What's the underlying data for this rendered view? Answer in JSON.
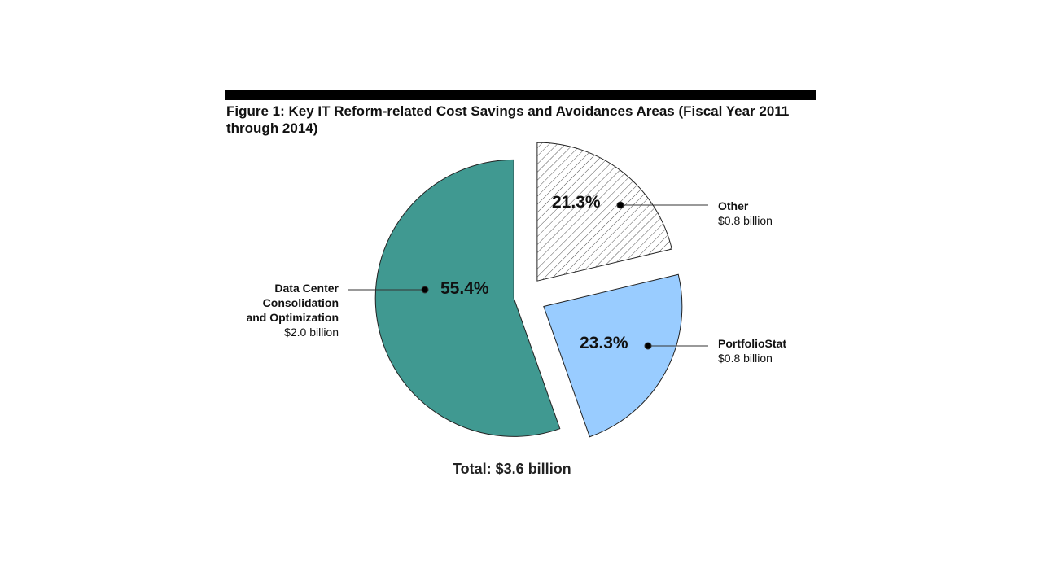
{
  "title": "Figure 1: Key IT Reform-related Cost Savings and Avoidances Areas (Fiscal Year 2011 through 2014)",
  "total_label": "Total:  $3.6 billion",
  "chart_data": {
    "type": "pie",
    "title": "Figure 1: Key IT Reform-related Cost Savings and Avoidances Areas (Fiscal Year 2011 through 2014)",
    "total": "Total:  $3.6 billion",
    "slices": [
      {
        "name": "Other",
        "value": 21.3,
        "pct_label": "21.3%",
        "amount": "$0.8 billion",
        "color": "#ffffff",
        "pattern": "hatch"
      },
      {
        "name": "PortfolioStat",
        "value": 23.3,
        "pct_label": "23.3%",
        "amount": "$0.8 billion",
        "color": "#99ccff"
      },
      {
        "name": "Data Center Consolidation and Optimization",
        "name_lines": [
          "Data Center",
          "Consolidation",
          "and Optimization"
        ],
        "value": 55.4,
        "pct_label": "55.4%",
        "amount": "$2.0 billion",
        "color": "#409991"
      }
    ]
  }
}
